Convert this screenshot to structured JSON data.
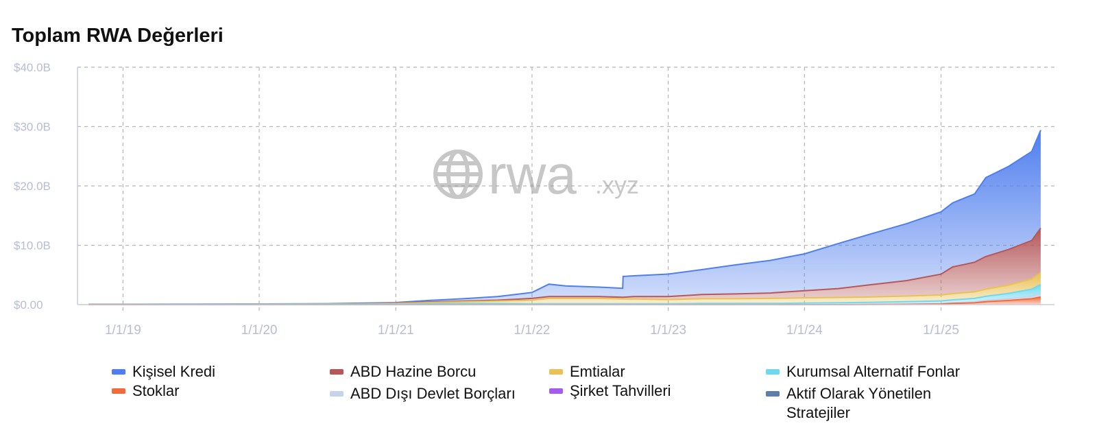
{
  "page_title": "Toplam RWA Değerleri",
  "watermark": {
    "main": "rwa",
    "suffix": ".xyz",
    "icon": "globe-icon"
  },
  "colors": {
    "grid": "#b5b5b5",
    "tick_text": "#b7bcd6",
    "axis": "#c8cce0"
  },
  "chart_data": {
    "type": "area",
    "stacked": true,
    "title": "Toplam RWA Değerleri",
    "xlabel": "",
    "ylabel": "",
    "x": [
      "2018-10-01",
      "2019-01-01",
      "2019-07-01",
      "2020-01-01",
      "2020-07-01",
      "2021-01-01",
      "2021-04-01",
      "2021-07-01",
      "2021-10-01",
      "2022-01-01",
      "2022-02-15",
      "2022-04-01",
      "2022-07-01",
      "2022-09-01",
      "2022-09-02",
      "2022-10-01",
      "2023-01-01",
      "2023-04-01",
      "2023-07-01",
      "2023-10-01",
      "2024-01-01",
      "2024-04-01",
      "2024-07-01",
      "2024-10-01",
      "2025-01-01",
      "2025-02-01",
      "2025-04-01",
      "2025-05-01",
      "2025-07-01",
      "2025-09-01",
      "2025-09-25"
    ],
    "xticks": [
      "1/1/19",
      "1/1/20",
      "1/1/21",
      "1/1/22",
      "1/1/23",
      "1/1/24",
      "1/1/25"
    ],
    "xtick_dates": [
      "2019-01-01",
      "2020-01-01",
      "2021-01-01",
      "2022-01-01",
      "2023-01-01",
      "2024-01-01",
      "2025-01-01"
    ],
    "xlim": [
      "2018-09-01",
      "2025-11-01"
    ],
    "ylim": [
      0,
      40
    ],
    "yticks": [
      0,
      10,
      20,
      30,
      40
    ],
    "ytick_labels": [
      "$0.00",
      "$10.0B",
      "$20.0B",
      "$30.0B",
      "$40.0B"
    ],
    "grid": true,
    "legend_position": "bottom",
    "series": [
      {
        "name": "Stoklar",
        "color": "#f26b3a",
        "values": [
          0,
          0,
          0,
          0,
          0,
          0,
          0,
          0,
          0,
          0,
          0,
          0,
          0,
          0,
          0,
          0,
          0,
          0,
          0,
          0,
          0,
          0,
          0.02,
          0.05,
          0.1,
          0.2,
          0.3,
          0.5,
          0.7,
          1.0,
          1.3
        ]
      },
      {
        "name": "ABD Dışı Devlet Borçları",
        "color": "#c7d3ea",
        "values": [
          0,
          0,
          0,
          0,
          0,
          0,
          0,
          0,
          0,
          0,
          0,
          0,
          0,
          0,
          0,
          0,
          0,
          0,
          0,
          0,
          0,
          0,
          0.02,
          0.05,
          0.08,
          0.1,
          0.15,
          0.2,
          0.3,
          0.4,
          0.5
        ]
      },
      {
        "name": "Kurumsal Alternatif Fonlar",
        "color": "#6fd8ee",
        "values": [
          0.05,
          0.05,
          0.06,
          0.07,
          0.08,
          0.1,
          0.15,
          0.2,
          0.2,
          0.15,
          0.15,
          0.15,
          0.15,
          0.15,
          0.15,
          0.15,
          0.15,
          0.2,
          0.2,
          0.2,
          0.25,
          0.3,
          0.35,
          0.4,
          0.45,
          0.5,
          0.6,
          0.7,
          0.9,
          1.2,
          1.6
        ]
      },
      {
        "name": "Emtialar",
        "color": "#e9c154",
        "values": [
          0,
          0,
          0,
          0,
          0,
          0.1,
          0.2,
          0.3,
          0.4,
          0.6,
          0.9,
          0.9,
          0.9,
          0.8,
          0.8,
          0.8,
          0.7,
          0.8,
          0.8,
          0.85,
          0.9,
          0.9,
          0.9,
          0.95,
          1.0,
          1.05,
          1.1,
          1.2,
          1.4,
          1.7,
          2.0
        ]
      },
      {
        "name": "ABD Hazine Borcu",
        "color": "#b5585a",
        "values": [
          0,
          0,
          0,
          0,
          0,
          0.05,
          0.1,
          0.1,
          0.15,
          0.3,
          0.3,
          0.3,
          0.3,
          0.3,
          0.3,
          0.4,
          0.5,
          0.7,
          0.8,
          0.9,
          1.2,
          1.5,
          2.1,
          2.6,
          3.5,
          4.5,
          5.0,
          5.5,
          6.0,
          6.5,
          7.5
        ]
      },
      {
        "name": "Kişisel Kredi",
        "color": "#4f7eee",
        "values": [
          0.02,
          0.02,
          0.03,
          0.05,
          0.08,
          0.1,
          0.25,
          0.4,
          0.6,
          1.0,
          2.1,
          1.8,
          1.6,
          1.5,
          3.5,
          3.5,
          3.8,
          4.2,
          4.9,
          5.5,
          6.2,
          7.6,
          8.6,
          9.6,
          10.5,
          10.8,
          11.5,
          13.3,
          14.0,
          15.0,
          16.5
        ]
      },
      {
        "name": "Şirket Tahvilleri",
        "color": "#a35bf0",
        "values": null
      },
      {
        "name": "Aktif Olarak Yönetilen Stratejiler",
        "color": "#5e7fa8",
        "values": null
      }
    ]
  },
  "legend": [
    {
      "label": "Kişisel Kredi",
      "color": "#4f7eee",
      "icon": "swatch-icon"
    },
    {
      "label": "ABD Hazine Borcu",
      "color": "#b5585a",
      "icon": "swatch-icon"
    },
    {
      "label": "Emtialar",
      "color": "#e9c154",
      "icon": "swatch-icon"
    },
    {
      "label": "Kurumsal Alternatif Fonlar",
      "color": "#6fd8ee",
      "icon": "swatch-icon"
    },
    {
      "label": "Stoklar",
      "color": "#f26b3a",
      "icon": "swatch-icon"
    },
    {
      "label": "ABD Dışı Devlet Borçları",
      "color": "#c7d3ea",
      "icon": "swatch-icon"
    },
    {
      "label": "Şirket Tahvilleri",
      "color": "#a35bf0",
      "icon": "swatch-icon"
    },
    {
      "label": "Aktif Olarak Yönetilen Stratejiler",
      "color": "#5e7fa8",
      "icon": "swatch-icon"
    }
  ]
}
